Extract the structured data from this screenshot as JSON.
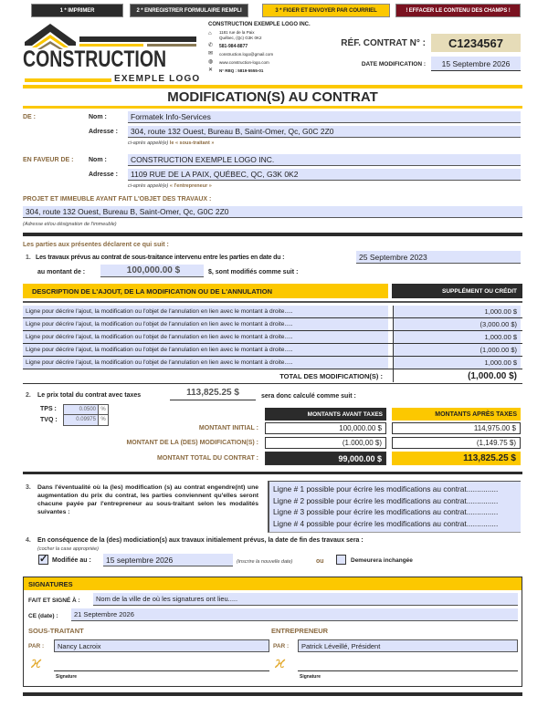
{
  "toolbar": {
    "print": "1 * IMPRIMER",
    "save": "2 * ENREGISTRER FORMULAIRE REMPLI",
    "send": "3 * FIGER ET ENVOYER PAR COURRIEL",
    "clear": "! EFFACER LE CONTENU DES CHAMPS !"
  },
  "logo": {
    "main": "CONSTRUCTION",
    "sub": "EXEMPLE LOGO"
  },
  "company": {
    "name": "CONSTRUCTION EXEMPLE LOGO INC.",
    "address1": "1181 rue de la Paix",
    "address2": "Québec, (Qc) G3K 0K2",
    "phone": "581-984-8877",
    "email": "construction.logo@gmail.com",
    "web": "www.construction-logo.com",
    "rbq": "N° RBQ : 5819-5555-01"
  },
  "header": {
    "ref_label": "RÉF. CONTRAT N° :",
    "ref_value": "C1234567",
    "date_label": "DATE MODIFICATION :",
    "date_value": "15 Septembre 2026",
    "title": "MODIFICATION(S) AU CONTRAT"
  },
  "from": {
    "label": "DE :",
    "nom_label": "Nom :",
    "nom": "Formatek Info-Services",
    "adresse_label": "Adresse :",
    "adresse": "304, route 132 Ouest, Bureau B, Saint-Omer, Qc, G0C 2Z0",
    "note": "ci-après appelé(e)",
    "role": "le « sous-traitant »"
  },
  "to": {
    "label": "EN FAVEUR DE :",
    "nom_label": "Nom :",
    "nom": "CONSTRUCTION EXEMPLE LOGO INC.",
    "adresse_label": "Adresse :",
    "adresse": "1109 RUE DE LA PAIX, QUÉBEC, QC, G3K 0K2",
    "note": "ci-après appelé(e)",
    "role": "« l'entrepreneur »"
  },
  "project": {
    "label": "PROJET ET IMMEUBLE AYANT FAIT L'OBJET DES TRAVAUX :",
    "value": "304, route 132 Ouest, Bureau B, Saint-Omer, Qc, G0C 2Z0",
    "note": "(Adresse et/ou désignation de l'immeuble)"
  },
  "declare": "Les parties aux présentes déclarent ce qui suit :",
  "s1": {
    "num": "1.",
    "text": "Les travaux prévus au contrat de sous-traitance intervenu entre les parties en date du :",
    "date": "25 Septembre 2023",
    "amount_label": "au montant de :",
    "amount": "100,000.00 $",
    "suffix": "$, sont modifiés comme suit :"
  },
  "table": {
    "col1": "DESCRIPTION DE L'AJOUT, DE LA MODIFICATION OU DE L'ANNULATION",
    "col2": "SUPPLÉMENT OU CRÉDIT",
    "rows": [
      {
        "desc": "Ligne pour décrire l'ajout, la modification ou l'objet de l'annulation en lien avec le montant à droite.....",
        "value": "1,000.00 $"
      },
      {
        "desc": "Ligne pour décrire l'ajout, la modification ou l'objet de l'annulation en lien avec le montant à droite.....",
        "value": "(3,000.00 $)"
      },
      {
        "desc": "Ligne pour décrire l'ajout, la modification ou l'objet de l'annulation en lien avec le montant à droite.....",
        "value": "1,000.00 $"
      },
      {
        "desc": "Ligne pour décrire l'ajout, la modification ou l'objet de l'annulation en lien avec le montant à droite.....",
        "value": "(1,000.00 $)"
      },
      {
        "desc": "Ligne pour décrire l'ajout, la modification ou l'objet de l'annulation en lien avec le montant à droite.....",
        "value": "1,000.00 $"
      }
    ],
    "total_label": "TOTAL DES MODIFICATION(S) :",
    "total": "(1,000.00 $)"
  },
  "s2": {
    "num": "2.",
    "text": "Le prix total du contrat avec taxes",
    "total": "113,825.25 $",
    "suffix": "sera donc calculé comme suit :",
    "tps_label": "TPS :",
    "tps": "0.0500",
    "tvq_label": "TVQ :",
    "tvq": "0.09975",
    "pct": "%",
    "before": "MONTANTS AVANT TAXES",
    "after": "MONTANTS APRÈS TAXES",
    "initial_label": "MONTANT INITIAL :",
    "initial_before": "100,000.00 $",
    "initial_after": "114,975.00 $",
    "mod_label": "MONTANT DE LA (DES) MODIFICATION(S) :",
    "mod_before": "(1.000,00 $)",
    "mod_after": "(1,149.75 $)",
    "total_label": "MONTANT TOTAL DU CONTRAT :",
    "total_before": "99,000.00 $",
    "total_after": "113,825.25 $"
  },
  "s3": {
    "num": "3.",
    "text": "Dans l'éventualité où la (les) modification (s) au contrat engendre(nt) une augmentation du prix du contrat, les parties conviennent qu'elles seront chacune payée par l'entrepreneur au sous-traitant selon les modalités suivantes :",
    "lines": [
      "Ligne # 1 possible pour écrire les modifications au contrat...............",
      "Ligne # 2 possible pour écrire les modifications au contrat...............",
      "Ligne # 3 possible pour écrire les modifications au contrat...............",
      "Ligne # 4 possible pour écrire les modifications au contrat..............."
    ]
  },
  "s4": {
    "num": "4.",
    "text": "En conséquence de la (des) modiciation(s) aux travaux initialement prévus, la date de fin des travaux sera :",
    "hint": "(cocher la case appropriée)",
    "modified_label": "Modifiée au :",
    "modified_checked": true,
    "date": "15 septembre 2026",
    "date_hint": "(inscrire la nouvelle date)",
    "or": "ou",
    "unchanged_label": "Demeurera inchangée",
    "unchanged_checked": false
  },
  "sig": {
    "title": "SIGNATURES",
    "place_label": "FAIT ET SIGNÉ À :",
    "place": "Nom de la ville de où les signatures ont lieu.....",
    "date_label": "CE (date) :",
    "date": "21 Septembre 2026",
    "left_title": "SOUS-TRAITANT",
    "right_title": "ENTREPRENEUR",
    "par": "PAR :",
    "left_name": "Nancy Lacroix",
    "right_name": "Patrick Léveillé, Président",
    "signature": "Signature"
  },
  "colors": {
    "yellow": "#fcc800",
    "dark": "#2b2b2b",
    "brown": "#8a6a40",
    "field": "#dde3fb",
    "red": "#7a1220",
    "tan": "#e6dcb8"
  }
}
